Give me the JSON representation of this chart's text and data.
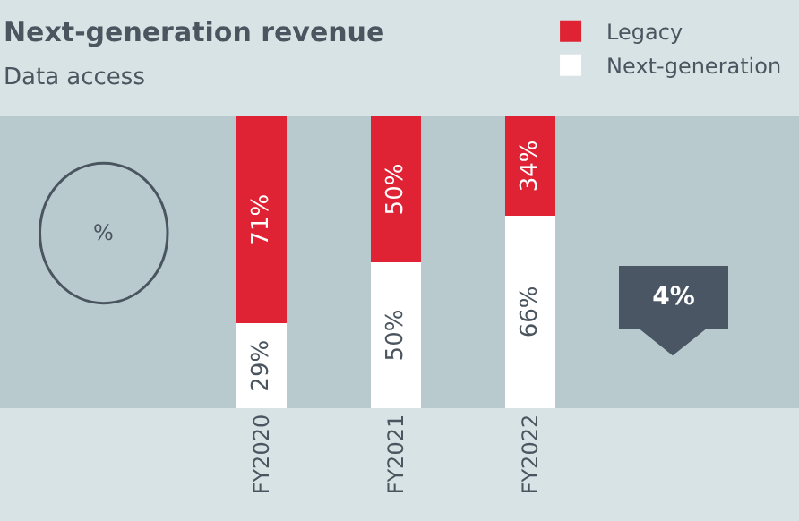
{
  "chart_data": {
    "type": "bar",
    "title": "Next-generation revenue",
    "subtitle": "Data access",
    "categories": [
      "FY2020",
      "FY2021",
      "FY2022"
    ],
    "stacked": true,
    "data_labels": true,
    "legend": "top right",
    "series": [
      {
        "name": "Next-generation",
        "color": "#ffffff",
        "values": [
          29,
          50,
          66
        ],
        "value_labels": [
          "29%",
          "50%",
          "66%"
        ]
      },
      {
        "name": "Legacy",
        "color": "#e02334",
        "values": [
          71,
          50,
          34
        ],
        "value_labels": [
          "71%",
          "50%",
          "34%"
        ]
      }
    ],
    "annotations": [
      "%",
      "4%"
    ]
  }
}
